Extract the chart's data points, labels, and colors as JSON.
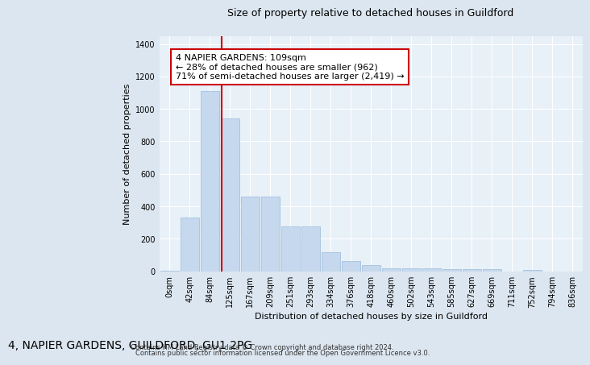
{
  "title": "4, NAPIER GARDENS, GUILDFORD, GU1 2PG",
  "subtitle": "Size of property relative to detached houses in Guildford",
  "xlabel": "Distribution of detached houses by size in Guildford",
  "ylabel": "Number of detached properties",
  "bar_labels": [
    "0sqm",
    "42sqm",
    "84sqm",
    "125sqm",
    "167sqm",
    "209sqm",
    "251sqm",
    "293sqm",
    "334sqm",
    "376sqm",
    "418sqm",
    "460sqm",
    "502sqm",
    "543sqm",
    "585sqm",
    "627sqm",
    "669sqm",
    "711sqm",
    "752sqm",
    "794sqm",
    "836sqm"
  ],
  "bar_values": [
    5,
    330,
    1110,
    940,
    460,
    460,
    275,
    275,
    120,
    65,
    40,
    20,
    20,
    20,
    12,
    12,
    12,
    0,
    10,
    0,
    0
  ],
  "bar_color": "#c5d8ee",
  "bar_edgecolor": "#9abbd8",
  "annotation_text": "4 NAPIER GARDENS: 109sqm\n← 28% of detached houses are smaller (962)\n71% of semi-detached houses are larger (2,419) →",
  "annotation_box_facecolor": "#ffffff",
  "annotation_box_edgecolor": "#cc0000",
  "ylim": [
    0,
    1450
  ],
  "yticks": [
    0,
    200,
    400,
    600,
    800,
    1000,
    1200,
    1400
  ],
  "fig_bg_color": "#dce6f0",
  "plot_bg_color": "#e8f0f8",
  "footnote1": "Contains HM Land Registry data © Crown copyright and database right 2024.",
  "footnote2": "Contains public sector information licensed under the Open Government Licence v3.0.",
  "title_fontsize": 10,
  "subtitle_fontsize": 9,
  "xlabel_fontsize": 8,
  "ylabel_fontsize": 8,
  "tick_fontsize": 7,
  "annot_fontsize": 8,
  "footnote_fontsize": 6
}
